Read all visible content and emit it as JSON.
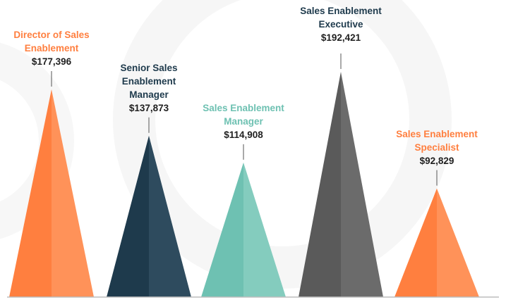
{
  "chart_data": {
    "type": "bar",
    "categories": [
      "Director of Sales Enablement",
      "Senior Sales Enablement Manager",
      "Sales Enablement Manager",
      "Sales Enablement Executive",
      "Sales Enablement Specialist"
    ],
    "values": [
      177396,
      137873,
      114908,
      192421,
      92829
    ],
    "value_labels": [
      "$177,396",
      "$137,873",
      "$114,908",
      "$192,421",
      "$92,829"
    ],
    "title": "",
    "xlabel": "",
    "ylabel": "",
    "ylim": [
      0,
      192421
    ],
    "grid": false,
    "legend": "none",
    "colors": {
      "orange": "#FF7F3F",
      "orange_light": "#FF9259",
      "navy": "#1E3A4C",
      "navy_light": "#2E4B5E",
      "teal": "#6EC1B2",
      "teal_light": "#84CCBE",
      "gray": "#5A5A5A",
      "gray_light": "#6B6B6B",
      "baseline": "#BDBDBD",
      "connector": "#555555"
    },
    "bar_colors": [
      "orange",
      "navy",
      "teal",
      "gray",
      "orange"
    ],
    "label_colors": [
      "#FF7F3F",
      "#1E3A4C",
      "#6EC1B2",
      "#1E3A4C",
      "#FF7F3F"
    ]
  }
}
